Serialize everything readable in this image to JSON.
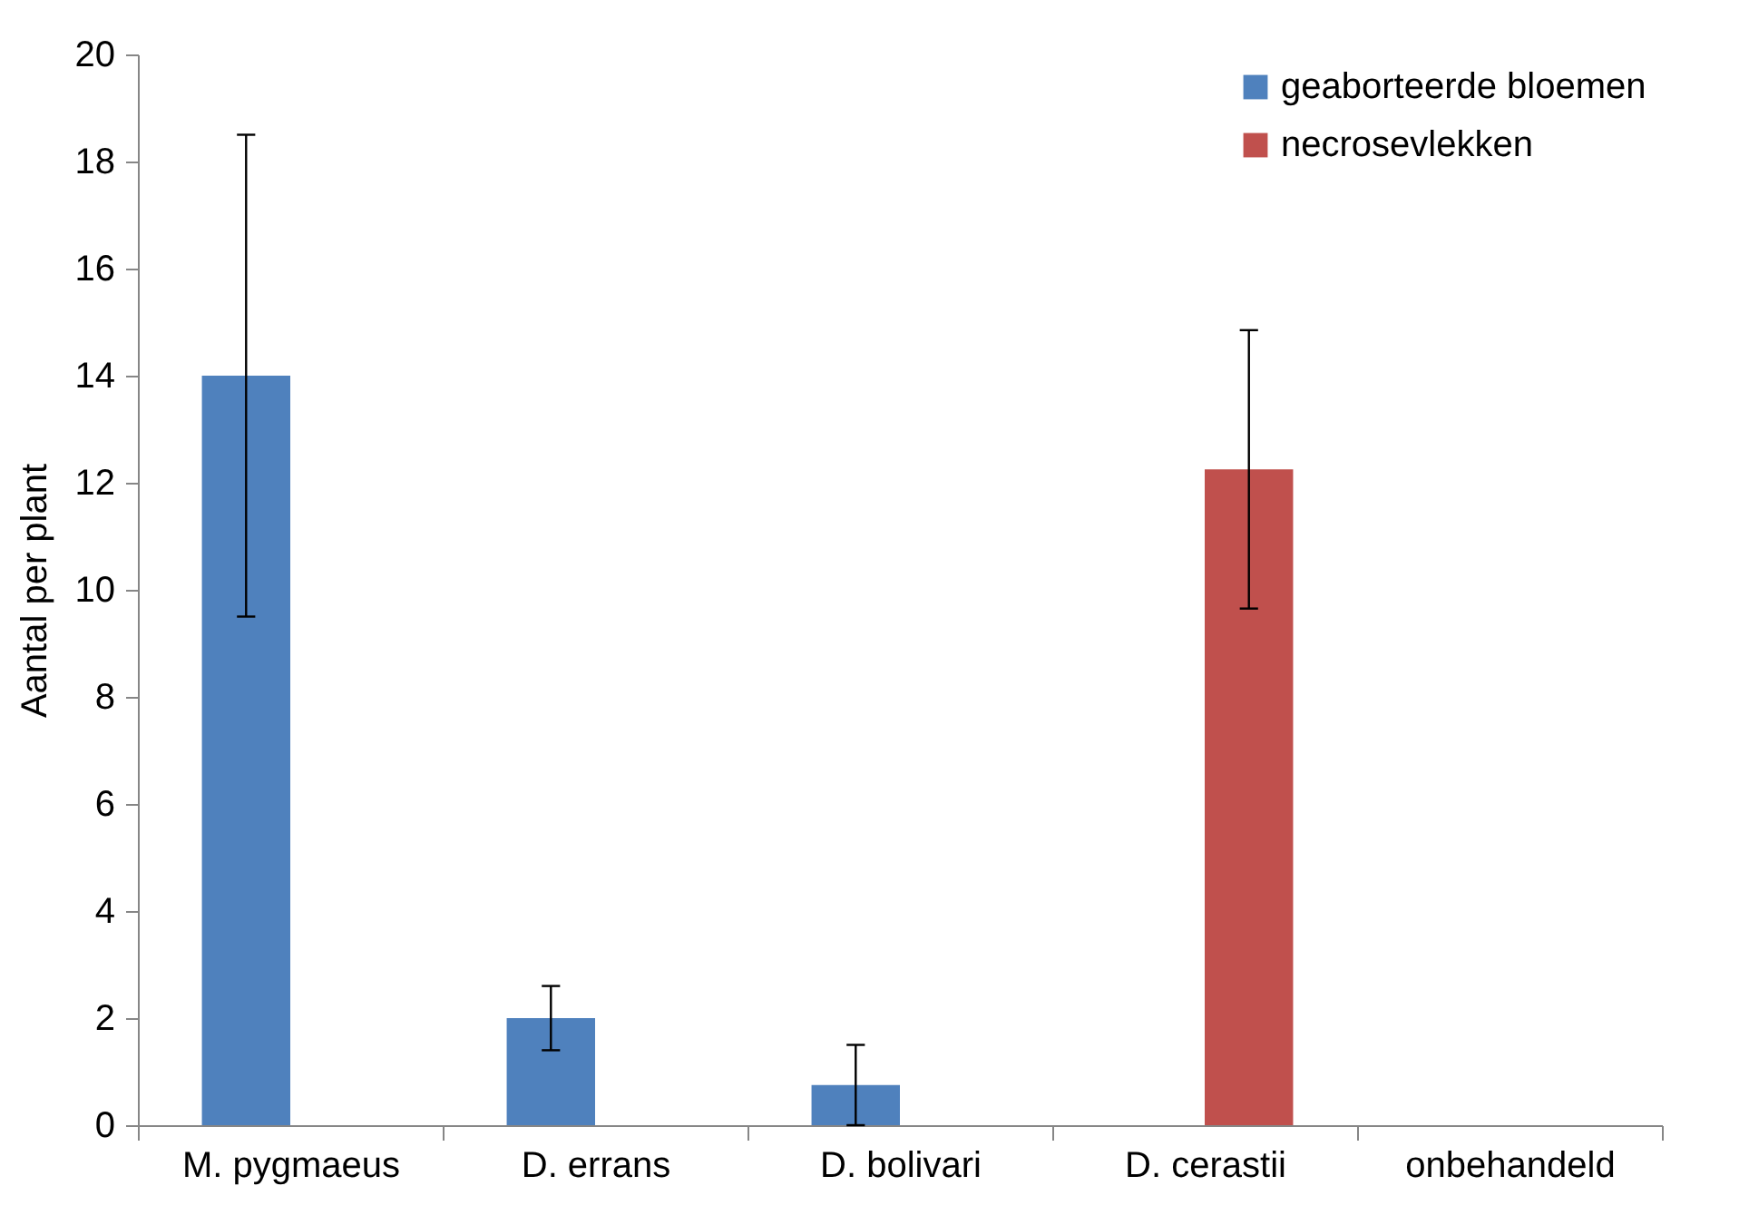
{
  "chart_data": {
    "type": "bar",
    "ylabel": "Aantal per plant",
    "categories": [
      "M. pygmaeus",
      "D. errans",
      "D. bolivari",
      "D. cerastii",
      "onbehandeld"
    ],
    "series": [
      {
        "name": "geaborteerde bloemen",
        "color": "#4f81bd",
        "values": [
          14,
          2,
          0.75,
          null,
          null
        ],
        "errors": [
          4.5,
          0.6,
          0.75,
          null,
          null
        ]
      },
      {
        "name": "necrosevlekken",
        "color": "#c0504d",
        "values": [
          null,
          null,
          null,
          12.25,
          null
        ],
        "errors": [
          null,
          null,
          null,
          2.6,
          null
        ]
      }
    ],
    "ylim": [
      0,
      20
    ],
    "yticks": [
      0,
      2,
      4,
      6,
      8,
      10,
      12,
      14,
      16,
      18,
      20
    ],
    "grid": false,
    "legend": "top right"
  }
}
